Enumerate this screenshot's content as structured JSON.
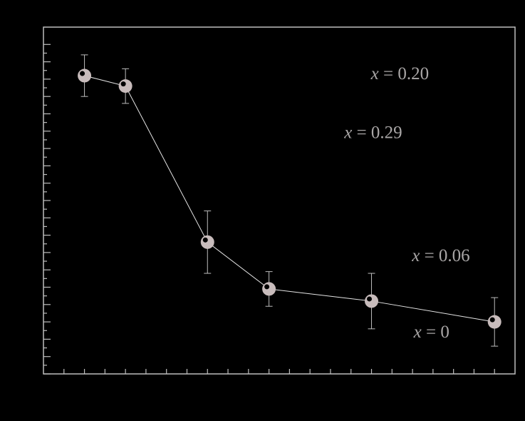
{
  "chart_data": {
    "type": "scatter",
    "title": "",
    "xlabel": "",
    "ylabel": "",
    "x_ticks_labeled": false,
    "y_ticks_labeled": false,
    "xlim": [
      -1,
      22
    ],
    "ylim": [
      0,
      20
    ],
    "grid": false,
    "series": [
      {
        "name": "",
        "connected": true,
        "points": [
          {
            "x": 1,
            "y": 17.2,
            "err_low": 1.2,
            "err_high": 1.2
          },
          {
            "x": 3,
            "y": 16.6,
            "err_low": 1.0,
            "err_high": 1.0
          },
          {
            "x": 7,
            "y": 7.6,
            "err_low": 1.8,
            "err_high": 1.8
          },
          {
            "x": 10,
            "y": 4.9,
            "err_low": 1.0,
            "err_high": 1.0
          },
          {
            "x": 15,
            "y": 4.2,
            "err_low": 1.6,
            "err_high": 1.6
          },
          {
            "x": 21,
            "y": 3.0,
            "err_low": 1.4,
            "err_high": 1.4
          }
        ]
      }
    ],
    "annotations": [
      {
        "text": "x = 0.20",
        "x": 17.8,
        "y": 17.0
      },
      {
        "text": "x = 0.29",
        "x": 16.5,
        "y": 13.6
      },
      {
        "text": "x = 0.06",
        "x": 19.8,
        "y": 6.5
      },
      {
        "text": "x = 0",
        "x": 18.8,
        "y": 2.1
      }
    ],
    "colors": {
      "background": "#000000",
      "axes": "#bdbdbd",
      "line": "#e6e6e6",
      "marker": "#c8bcbc",
      "errorbar": "#bdbdbd",
      "text": "#a9a6a6"
    }
  }
}
